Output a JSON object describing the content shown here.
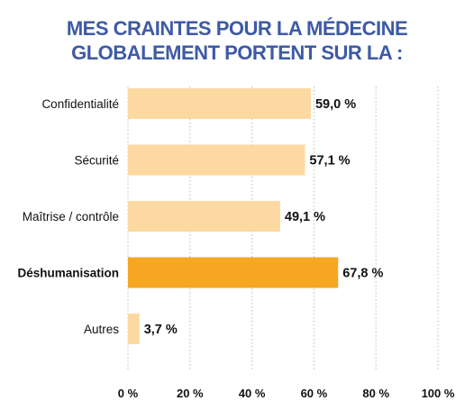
{
  "title_lines": [
    "MES CRAINTES POUR LA MÉDECINE",
    "GLOBALEMENT PORTENT SUR LA :"
  ],
  "colors": {
    "title": "#3d5aa6",
    "bar_default": "#fcd9a0",
    "bar_highlight": "#f5a623",
    "gridline": "#bdbdbd"
  },
  "chart_data": {
    "type": "bar",
    "orientation": "horizontal",
    "title": "MES CRAINTES POUR LA MÉDECINE GLOBALEMENT PORTENT SUR LA :",
    "categories": [
      "Confidentialité",
      "Sécurité",
      "Maîtrise / contrôle",
      "Déshumanisation",
      "Autres"
    ],
    "values": [
      59.0,
      57.1,
      49.1,
      67.8,
      3.7
    ],
    "value_labels": [
      "59,0 %",
      "57,1 %",
      "49,1 %",
      "67,8 %",
      "3,7 %"
    ],
    "highlight": "Déshumanisation",
    "xlim": [
      0,
      100
    ],
    "xticks": [
      0,
      20,
      40,
      60,
      80,
      100
    ],
    "xtick_labels": [
      "0 %",
      "20 %",
      "40 %",
      "60 %",
      "80 %",
      "100 %"
    ],
    "grid": true,
    "xlabel": "",
    "ylabel": ""
  }
}
